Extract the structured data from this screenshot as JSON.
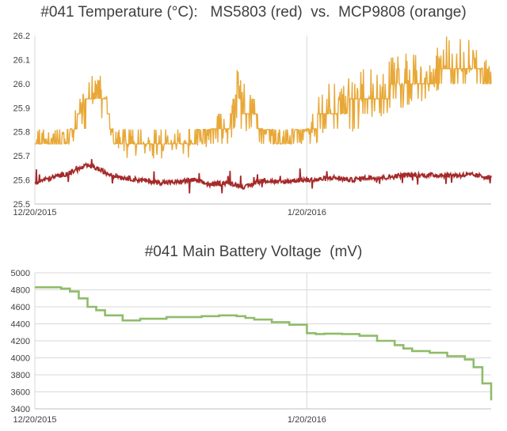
{
  "chart_data": [
    {
      "type": "line",
      "title": "#041 Temperature (°C):   MS5803 (red)  vs.  MCP9808 (orange)",
      "xlabel": "",
      "ylabel": "",
      "x_tick_labels": [
        "12/20/2015",
        "1/20/2016"
      ],
      "xlim": [
        "2015-12-20",
        "2016-02-10"
      ],
      "ylim": [
        25.5,
        26.2
      ],
      "y_ticks": [
        "25.5",
        "25.6",
        "25.7",
        "25.8",
        "25.9",
        "26.0",
        "26.1",
        "26.2"
      ],
      "grid": "vertical lines at date ticks",
      "series": [
        {
          "color": "#e8a838",
          "x": [
            "2015-12-20",
            "2015-12-24",
            "2015-12-25",
            "2015-12-26",
            "2015-12-27",
            "2015-12-28",
            "2015-12-29",
            "2015-12-30",
            "2015-12-31",
            "2016-01-01",
            "2016-01-03",
            "2016-01-05",
            "2016-01-07",
            "2016-01-09",
            "2016-01-10",
            "2016-01-11",
            "2016-01-12",
            "2016-01-13",
            "2016-01-14",
            "2016-01-15",
            "2016-01-16",
            "2016-01-18",
            "2016-01-20",
            "2016-01-21",
            "2016-01-22",
            "2016-01-24",
            "2016-01-26",
            "2016-01-28",
            "2016-01-30",
            "2016-02-01",
            "2016-02-03",
            "2016-02-05",
            "2016-02-07",
            "2016-02-09",
            "2016-02-10"
          ],
          "values": [
            25.78,
            25.78,
            25.86,
            25.92,
            25.97,
            25.92,
            25.78,
            25.77,
            25.78,
            25.77,
            25.76,
            25.78,
            25.78,
            25.79,
            25.84,
            25.8,
            25.96,
            25.9,
            25.88,
            25.79,
            25.78,
            25.78,
            25.79,
            25.84,
            25.88,
            25.9,
            25.92,
            25.94,
            25.97,
            26.0,
            26.02,
            26.04,
            26.06,
            26.03,
            26.02
          ],
          "range_low": [
            25.75,
            25.75,
            25.75,
            25.8,
            25.85,
            25.8,
            25.75,
            25.69,
            25.69,
            25.69,
            25.69,
            25.69,
            25.69,
            25.75,
            25.75,
            25.75,
            25.8,
            25.8,
            25.75,
            25.75,
            25.75,
            25.75,
            25.75,
            25.75,
            25.8,
            25.8,
            25.8,
            25.85,
            25.9,
            25.9,
            25.95,
            26.0,
            26.0,
            26.0,
            26.0
          ],
          "range_high": [
            25.81,
            25.81,
            25.94,
            26.0,
            26.06,
            26.0,
            25.81,
            25.81,
            25.81,
            25.81,
            25.81,
            25.81,
            25.81,
            25.81,
            25.88,
            25.88,
            26.06,
            26.0,
            25.94,
            25.81,
            25.81,
            25.81,
            25.81,
            25.94,
            26.0,
            26.0,
            26.06,
            26.06,
            26.13,
            26.13,
            26.13,
            26.2,
            26.2,
            26.13,
            26.06
          ]
        },
        {
          "color": "#a52a2a",
          "x": [
            "2015-12-20",
            "2015-12-22",
            "2015-12-24",
            "2015-12-26",
            "2015-12-27",
            "2015-12-28",
            "2015-12-30",
            "2016-01-01",
            "2016-01-03",
            "2016-01-05",
            "2016-01-07",
            "2016-01-09",
            "2016-01-11",
            "2016-01-13",
            "2016-01-15",
            "2016-01-17",
            "2016-01-19",
            "2016-01-21",
            "2016-01-23",
            "2016-01-25",
            "2016-01-27",
            "2016-01-29",
            "2016-01-31",
            "2016-02-02",
            "2016-02-04",
            "2016-02-06",
            "2016-02-08",
            "2016-02-10"
          ],
          "values": [
            25.59,
            25.61,
            25.63,
            25.66,
            25.65,
            25.63,
            25.61,
            25.6,
            25.59,
            25.59,
            25.6,
            25.58,
            25.59,
            25.57,
            25.6,
            25.59,
            25.6,
            25.6,
            25.61,
            25.6,
            25.61,
            25.61,
            25.62,
            25.62,
            25.62,
            25.62,
            25.62,
            25.61
          ]
        }
      ]
    },
    {
      "type": "line",
      "title": "#041 Main Battery Voltage  (mV)",
      "xlabel": "",
      "ylabel": "",
      "x_tick_labels": [
        "12/20/2015",
        "1/20/2016"
      ],
      "xlim": [
        "2015-12-20",
        "2016-02-10"
      ],
      "ylim": [
        3400,
        5000
      ],
      "y_ticks": [
        "3400",
        "3600",
        "3800",
        "4000",
        "4200",
        "4400",
        "4600",
        "4800",
        "5000"
      ],
      "grid": "horizontal and vertical",
      "series": [
        {
          "color": "#8fbc6a",
          "step": true,
          "x": [
            "2015-12-20",
            "2015-12-23",
            "2015-12-24",
            "2015-12-25",
            "2015-12-26",
            "2015-12-27",
            "2015-12-28",
            "2015-12-30",
            "2016-01-01",
            "2016-01-04",
            "2016-01-08",
            "2016-01-10",
            "2016-01-12",
            "2016-01-13",
            "2016-01-14",
            "2016-01-16",
            "2016-01-18",
            "2016-01-20",
            "2016-01-21",
            "2016-01-22",
            "2016-01-24",
            "2016-01-26",
            "2016-01-28",
            "2016-01-30",
            "2016-01-31",
            "2016-02-01",
            "2016-02-03",
            "2016-02-05",
            "2016-02-07",
            "2016-02-08",
            "2016-02-09",
            "2016-02-10"
          ],
          "values": [
            4830,
            4815,
            4780,
            4700,
            4600,
            4560,
            4500,
            4440,
            4460,
            4480,
            4490,
            4500,
            4490,
            4470,
            4450,
            4420,
            4390,
            4290,
            4280,
            4285,
            4280,
            4260,
            4200,
            4150,
            4110,
            4080,
            4060,
            4020,
            3980,
            3890,
            3700,
            3500
          ]
        }
      ]
    }
  ]
}
